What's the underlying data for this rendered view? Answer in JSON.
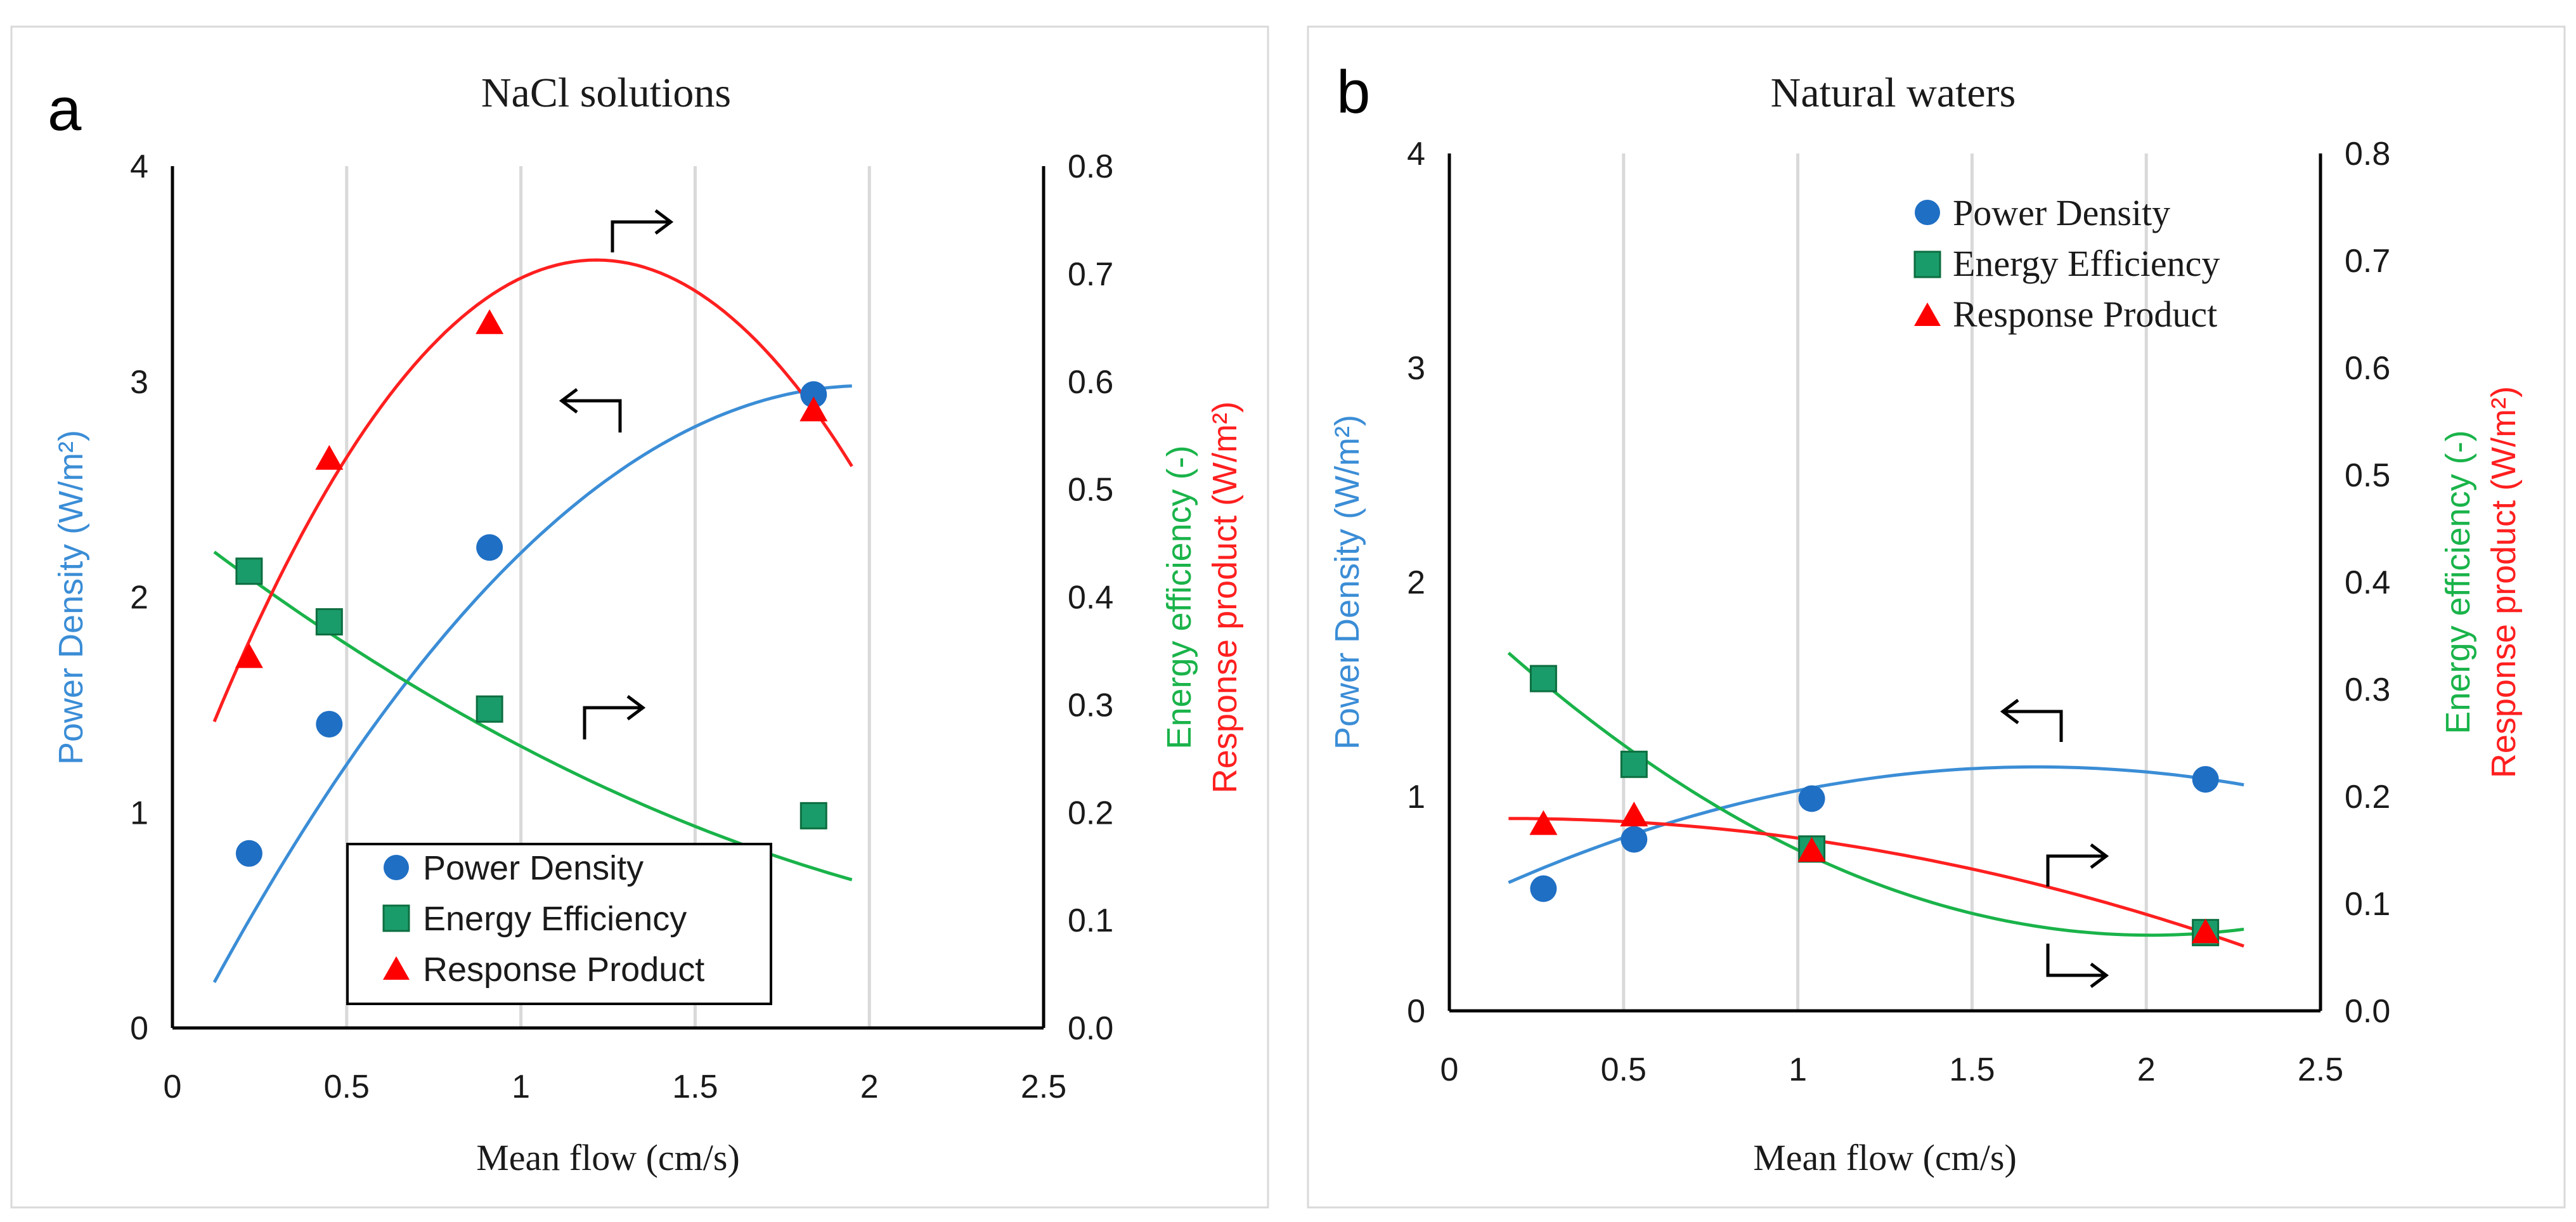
{
  "figure": {
    "colors": {
      "power": "#3b8dd6",
      "power_marker": "#1f6fc4",
      "energy": "#1ab34a",
      "energy_marker": "#1a9c6a",
      "energy_marker_edge": "#0d6e40",
      "response": "#ff1f1f",
      "response_marker": "#ff0000",
      "axis": "#000000",
      "grid": "#d9d9d9"
    }
  },
  "chart_data": [
    {
      "type": "scatter",
      "panel_label": "a",
      "title": "NaCl solutions",
      "xlabel": "Mean flow (cm/s)",
      "ylabel_left": "Power Density (W/m²)",
      "ylabel_right_1": "Energy efficiency (-)",
      "ylabel_right_2": "Response product (W/m²)",
      "xlim": [
        0,
        2.5
      ],
      "ylim_left": [
        0,
        4
      ],
      "ylim_right": [
        0,
        0.8
      ],
      "x_ticks": [
        "0",
        "0.5",
        "1",
        "1.5",
        "2",
        "2.5"
      ],
      "y_left_ticks": [
        "0",
        "1",
        "2",
        "3",
        "4"
      ],
      "y_right_ticks": [
        "0.0",
        "0.1",
        "0.2",
        "0.3",
        "0.4",
        "0.5",
        "0.6",
        "0.7",
        "0.8"
      ],
      "legend": {
        "position": "bottom-center",
        "style": "boxed",
        "entries": [
          "Power Density",
          "Energy Efficiency",
          "Response Product"
        ]
      },
      "series": [
        {
          "name": "Power Density",
          "axis": "left",
          "marker": "circle",
          "color_key": "power",
          "x": [
            0.22,
            0.45,
            0.91,
            1.84
          ],
          "y": [
            0.81,
            1.41,
            2.23,
            2.94
          ],
          "fit_x": [
            0.12,
            1.95
          ],
          "fit": [
            -0.792,
            3.152,
            -0.155
          ]
        },
        {
          "name": "Energy Efficiency",
          "axis": "right",
          "marker": "square",
          "color_key": "energy",
          "x": [
            0.22,
            0.45,
            0.91,
            1.84
          ],
          "y": [
            0.424,
            0.377,
            0.296,
            0.197
          ],
          "fit_x": [
            0.12,
            1.95
          ],
          "fit": [
            0.0407,
            -0.2505,
            0.4713
          ]
        },
        {
          "name": "Response Product",
          "axis": "right",
          "marker": "triangle",
          "color_key": "response",
          "x": [
            0.22,
            0.45,
            0.91,
            1.84
          ],
          "y": [
            0.343,
            0.527,
            0.653,
            0.572
          ],
          "fit_x": [
            0.12,
            1.95
          ],
          "fit": [
            -0.3562,
            0.8669,
            0.1854
          ]
        }
      ],
      "direction_arrows": [
        {
          "points_to": "right",
          "series": "Response Product"
        },
        {
          "points_to": "left",
          "series": "Power Density"
        },
        {
          "points_to": "right",
          "series": "Energy Efficiency"
        }
      ]
    },
    {
      "type": "scatter",
      "panel_label": "b",
      "title": "Natural waters",
      "xlabel": "Mean flow (cm/s)",
      "ylabel_left": "Power Density (W/m²)",
      "ylabel_right_1": "Energy efficiency (-)",
      "ylabel_right_2": "Response product (W/m²)",
      "xlim": [
        0,
        2.5
      ],
      "ylim_left": [
        0,
        4
      ],
      "ylim_right": [
        0,
        0.8
      ],
      "x_ticks": [
        "0",
        "0.5",
        "1",
        "1.5",
        "2",
        "2.5"
      ],
      "y_left_ticks": [
        "0",
        "1",
        "2",
        "3",
        "4"
      ],
      "y_right_ticks": [
        "0.0",
        "0.1",
        "0.2",
        "0.3",
        "0.4",
        "0.5",
        "0.6",
        "0.7",
        "0.8"
      ],
      "legend": {
        "position": "top-right",
        "style": "plain",
        "entries": [
          "Power Density",
          "Energy Efficiency",
          "Response Product"
        ]
      },
      "series": [
        {
          "name": "Power Density",
          "axis": "left",
          "marker": "circle",
          "color_key": "power",
          "x": [
            0.27,
            0.53,
            1.04,
            2.17
          ],
          "y": [
            0.57,
            0.8,
            0.99,
            1.08
          ],
          "fit_x": [
            0.17,
            2.28
          ],
          "fit": [
            -0.2352,
            0.7924,
            0.4705
          ]
        },
        {
          "name": "Energy Efficiency",
          "axis": "right",
          "marker": "square",
          "color_key": "energy",
          "x": [
            0.27,
            0.53,
            1.04,
            2.17
          ],
          "y": [
            0.31,
            0.23,
            0.151,
            0.073
          ],
          "fit_x": [
            0.17,
            2.28
          ],
          "fit": [
            0.0776,
            -0.3123,
            0.3848
          ]
        },
        {
          "name": "Response Product",
          "axis": "right",
          "marker": "triangle",
          "color_key": "response",
          "x": [
            0.27,
            0.53,
            1.04,
            2.17
          ],
          "y": [
            0.173,
            0.181,
            0.148,
            0.072
          ],
          "fit_x": [
            0.17,
            2.28
          ],
          "fit": [
            -0.0269,
            0.0095,
            0.1786
          ]
        }
      ],
      "direction_arrows": [
        {
          "points_to": "left",
          "series": "Power Density"
        },
        {
          "points_to": "right",
          "series": "Response Product"
        },
        {
          "points_to": "right",
          "series": "Energy Efficiency"
        }
      ]
    }
  ]
}
